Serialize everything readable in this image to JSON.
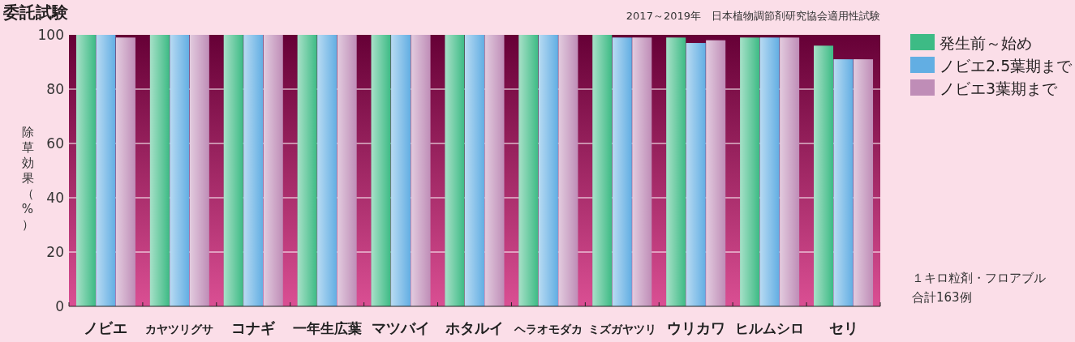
{
  "chart_data": {
    "type": "bar",
    "title": "委託試験",
    "subtitle": "2017～2019年　日本植物調節剤研究協会適用性試験",
    "ylabel": "除草効果（%）",
    "categories": [
      "ノビエ",
      "カヤツリグサ",
      "コナギ",
      "一年生広葉",
      "マツバイ",
      "ホタルイ",
      "ヘラオモダカ",
      "ミズガヤツリ",
      "ウリカワ",
      "ヒルムシロ",
      "セリ"
    ],
    "series": [
      {
        "name": "発生前～始め",
        "color": "#3dbb85",
        "values": [
          100,
          100,
          100,
          100,
          100,
          100,
          100,
          100,
          99,
          99,
          96
        ]
      },
      {
        "name": "ノビエ2.5葉期まで",
        "color": "#62aee3",
        "values": [
          100,
          100,
          100,
          100,
          100,
          100,
          100,
          99,
          97,
          99,
          91
        ]
      },
      {
        "name": "ノビエ3葉期まで",
        "color": "#bf8db7",
        "values": [
          99,
          100,
          100,
          100,
          100,
          100,
          100,
          99,
          98,
          99,
          91
        ]
      }
    ],
    "ylim": [
      0,
      100
    ],
    "yticks": [
      0,
      20,
      40,
      60,
      80,
      100
    ],
    "grid": "y",
    "legend": "right",
    "annotations": [
      "１キロ粒剤・フロアブル",
      "合計163例"
    ]
  }
}
